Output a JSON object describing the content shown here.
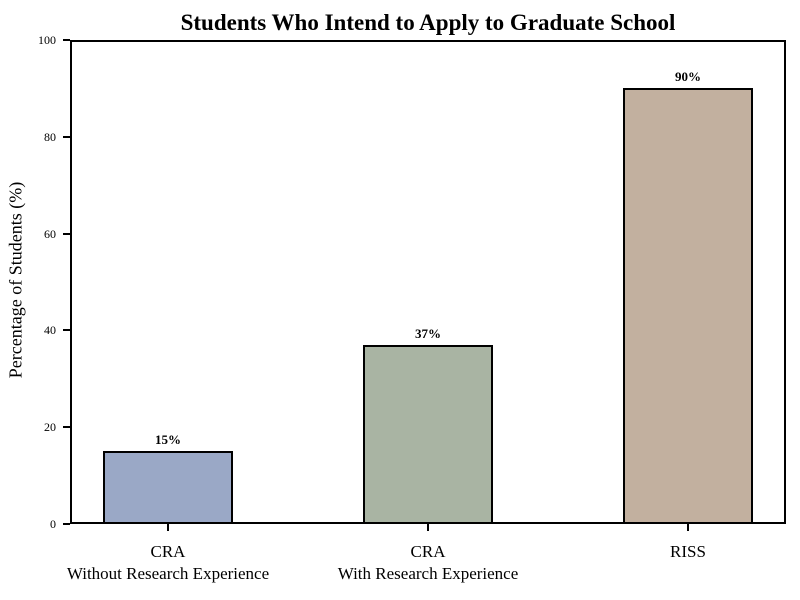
{
  "chart_data": {
    "type": "bar",
    "title": "Students Who Intend to Apply to Graduate School",
    "ylabel": "Percentage of Students (%)",
    "xlabel": "",
    "ylim": [
      0,
      100
    ],
    "yticks": [
      0,
      20,
      40,
      60,
      80,
      100
    ],
    "categories": [
      [
        "CRA",
        "Without Research Experience"
      ],
      [
        "CRA",
        "With Research Experience"
      ],
      [
        "RISS"
      ]
    ],
    "values": [
      15,
      37,
      90
    ],
    "value_labels": [
      "15%",
      "37%",
      "90%"
    ],
    "bar_colors": [
      "#9AA8C6",
      "#A9B4A3",
      "#C2B09F"
    ],
    "bar_edge_color": "#000000",
    "axis_color": "#000000",
    "background_color": "#FFFFFF",
    "grid": false,
    "legend": null
  }
}
